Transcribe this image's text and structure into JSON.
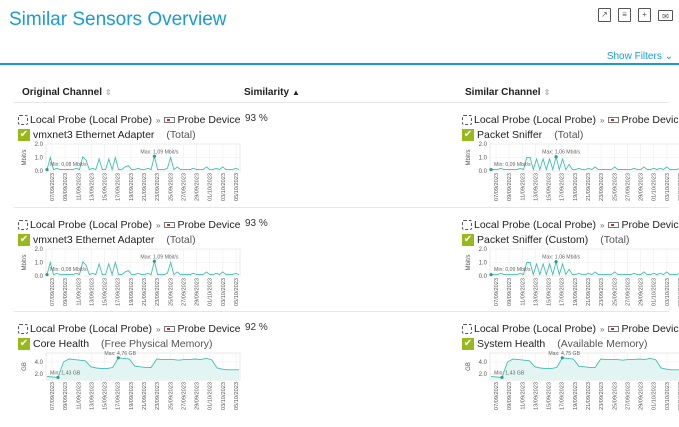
{
  "page": {
    "title": "Similar Sensors Overview",
    "show_filters": "Show Filters"
  },
  "toolbar": {
    "icons": [
      "external-link-icon",
      "pdf-icon",
      "add-report-icon",
      "email-icon"
    ]
  },
  "columns": {
    "original": "Original Channel",
    "similarity": "Similarity",
    "similar": "Similar Channel"
  },
  "colors": {
    "accent": "#1a9bd7",
    "check": "#97b91b",
    "chart": "#3fbfb0"
  },
  "dates": [
    "07/09/2023",
    "09/09/2023",
    "11/09/2023",
    "13/09/2023",
    "15/09/2023",
    "17/09/2023",
    "19/09/2023",
    "21/09/2023",
    "23/09/2023",
    "25/09/2023",
    "27/09/2023",
    "29/09/2023",
    "01/10/2023",
    "03/10/2023",
    "05/10/2023"
  ],
  "rows": [
    {
      "similarity": "93 %",
      "left": {
        "probe": "Local Probe (Local Probe)",
        "device": "Probe Device",
        "sensor": "vmxnet3 Ethernet Adapter",
        "channel": "(Total)",
        "chart": {
          "unit": "Mbit/s",
          "ticks": [
            "2.0",
            "1.0",
            "0.0"
          ],
          "ymax": 2,
          "min_label": "Min: 0,08 Mbit/s",
          "max_label": "Max: 1,09 Mbit/s",
          "kind": "spikes",
          "values": [
            0.1,
            1.0,
            0.1,
            0.2,
            0.1,
            0.1,
            0.1,
            0.1,
            0.1,
            0.2,
            0.1,
            1.05,
            0.8,
            0.1,
            0.2,
            0.1,
            0.9,
            0.1,
            0.1,
            0.9,
            0.1,
            1.0,
            0.1,
            0.1,
            0.3,
            0.4,
            0.1,
            0.1,
            0.2,
            0.1,
            0.1,
            0.2,
            0.1,
            1.09,
            0.1,
            0.1,
            0.1,
            0.2,
            1.0,
            0.1,
            0.3,
            0.1,
            0.1,
            0.1,
            0.1,
            0.2,
            0.1,
            0.1,
            0.1,
            0.3,
            0.1,
            0.1,
            0.2,
            0.1,
            0.3,
            0.1,
            0.1,
            0.1,
            0.2,
            0.1
          ]
        }
      },
      "right": {
        "probe": "Local Probe (Local Probe)",
        "device": "Probe Device",
        "sensor": "Packet Sniffer",
        "channel": "(Total)",
        "chart": {
          "unit": "Mbit/s",
          "ticks": [
            "2.0",
            "1.0",
            "0.0"
          ],
          "ymax": 2,
          "min_label": "Min: 0,09 Mbit/s",
          "max_label": "Max: 1,06 Mbit/s",
          "kind": "spikes",
          "values": [
            0.1,
            0.1,
            0.1,
            0.2,
            0.1,
            0.1,
            0.1,
            0.1,
            0.1,
            0.2,
            0.1,
            1.0,
            1.0,
            0.1,
            0.9,
            0.1,
            0.9,
            0.1,
            0.9,
            0.1,
            1.06,
            0.1,
            0.9,
            0.1,
            0.5,
            0.1,
            0.1,
            0.2,
            0.1,
            0.1,
            0.2,
            0.1,
            0.3,
            0.1,
            0.1,
            0.1,
            0.1,
            0.1,
            0.3,
            0.1,
            0.1,
            0.1,
            0.1,
            0.1,
            0.2,
            0.1,
            0.1,
            0.3,
            0.1,
            0.1,
            0.2,
            0.1,
            0.2,
            0.1,
            0.3,
            0.1,
            0.1,
            0.1,
            0.2,
            0.1
          ]
        }
      }
    },
    {
      "similarity": "93 %",
      "left": {
        "probe": "Local Probe (Local Probe)",
        "device": "Probe Device",
        "sensor": "vmxnet3 Ethernet Adapter",
        "channel": "(Total)",
        "chart": {
          "unit": "Mbit/s",
          "ticks": [
            "2.0",
            "1.0",
            "0.0"
          ],
          "ymax": 2,
          "min_label": "Min: 0,08 Mbit/s",
          "max_label": "Max: 1,09 Mbit/s",
          "kind": "spikes",
          "values": [
            0.1,
            1.0,
            0.1,
            0.2,
            0.1,
            0.1,
            0.1,
            0.1,
            0.1,
            0.2,
            0.1,
            1.05,
            0.8,
            0.1,
            0.2,
            0.1,
            0.9,
            0.1,
            0.1,
            0.9,
            0.1,
            1.0,
            0.1,
            0.1,
            0.3,
            0.4,
            0.1,
            0.1,
            0.2,
            0.1,
            0.1,
            0.2,
            0.1,
            1.09,
            0.1,
            0.1,
            0.1,
            0.2,
            1.0,
            0.1,
            0.3,
            0.1,
            0.1,
            0.1,
            0.1,
            0.2,
            0.1,
            0.1,
            0.1,
            0.3,
            0.1,
            0.1,
            0.2,
            0.1,
            0.3,
            0.1,
            0.1,
            0.1,
            0.2,
            0.1
          ]
        }
      },
      "right": {
        "probe": "Local Probe (Local Probe)",
        "device": "Probe Device",
        "sensor": "Packet Sniffer (Custom)",
        "channel": "(Total)",
        "chart": {
          "unit": "Mbit/s",
          "ticks": [
            "2.0",
            "1.0",
            "0.0"
          ],
          "ymax": 2,
          "min_label": "Min: 0,09 Mbit/s",
          "max_label": "Max: 1,06 Mbit/s",
          "kind": "spikes",
          "values": [
            0.1,
            0.1,
            0.1,
            0.2,
            0.1,
            0.1,
            0.1,
            0.1,
            0.1,
            0.2,
            0.1,
            1.0,
            1.0,
            0.1,
            0.9,
            0.1,
            0.9,
            0.1,
            0.9,
            0.1,
            1.06,
            0.1,
            0.9,
            0.1,
            0.5,
            0.1,
            0.1,
            0.2,
            0.1,
            0.1,
            0.2,
            0.1,
            0.3,
            0.1,
            0.1,
            0.1,
            0.1,
            0.1,
            0.3,
            0.1,
            0.1,
            0.1,
            0.1,
            0.1,
            0.2,
            0.1,
            0.1,
            0.3,
            0.1,
            0.1,
            0.2,
            0.1,
            0.2,
            0.1,
            0.3,
            0.1,
            0.1,
            0.1,
            0.2,
            0.1
          ]
        }
      }
    },
    {
      "similarity": "92 %",
      "left": {
        "probe": "Local Probe (Local Probe)",
        "device": "Probe Device",
        "sensor": "Core Health",
        "channel": "(Free Physical Memory)",
        "chart": {
          "unit": "GB",
          "ticks": [
            "4.0",
            "2.0"
          ],
          "ymax": 5.5,
          "ymin": 1,
          "min_label": "Min: 1,43 GB",
          "max_label": "Max: 4,76 GB",
          "kind": "area",
          "values": [
            1.6,
            1.5,
            1.43,
            4.0,
            4.5,
            4.4,
            4.3,
            4.2,
            3.2,
            3.0,
            2.9,
            2.9,
            3.1,
            4.7,
            4.6,
            4.5,
            3.3,
            3.2,
            3.1,
            3.1,
            4.5,
            4.4,
            4.4,
            4.4,
            4.3,
            4.4,
            4.4,
            4.5,
            4.4,
            4.6,
            4.4,
            3.0,
            2.8,
            2.7,
            2.7,
            2.7
          ]
        }
      },
      "right": {
        "probe": "Local Probe (Local Probe)",
        "device": "Probe Device",
        "sensor": "System Health",
        "channel": "(Available Memory)",
        "chart": {
          "unit": "GB",
          "ticks": [
            "4.0",
            "2.0"
          ],
          "ymax": 5.5,
          "ymin": 1,
          "min_label": "Min: 1,43 GB",
          "max_label": "Max: 4,75 GB",
          "kind": "area",
          "values": [
            1.6,
            1.5,
            1.43,
            4.0,
            4.5,
            4.4,
            4.3,
            4.2,
            3.2,
            3.0,
            2.9,
            2.9,
            3.1,
            4.7,
            4.6,
            4.5,
            3.3,
            3.2,
            3.1,
            3.1,
            4.5,
            4.4,
            4.4,
            4.4,
            4.3,
            4.4,
            4.4,
            4.5,
            4.4,
            4.6,
            4.4,
            3.0,
            2.8,
            2.7,
            2.7,
            2.7
          ]
        }
      }
    }
  ]
}
